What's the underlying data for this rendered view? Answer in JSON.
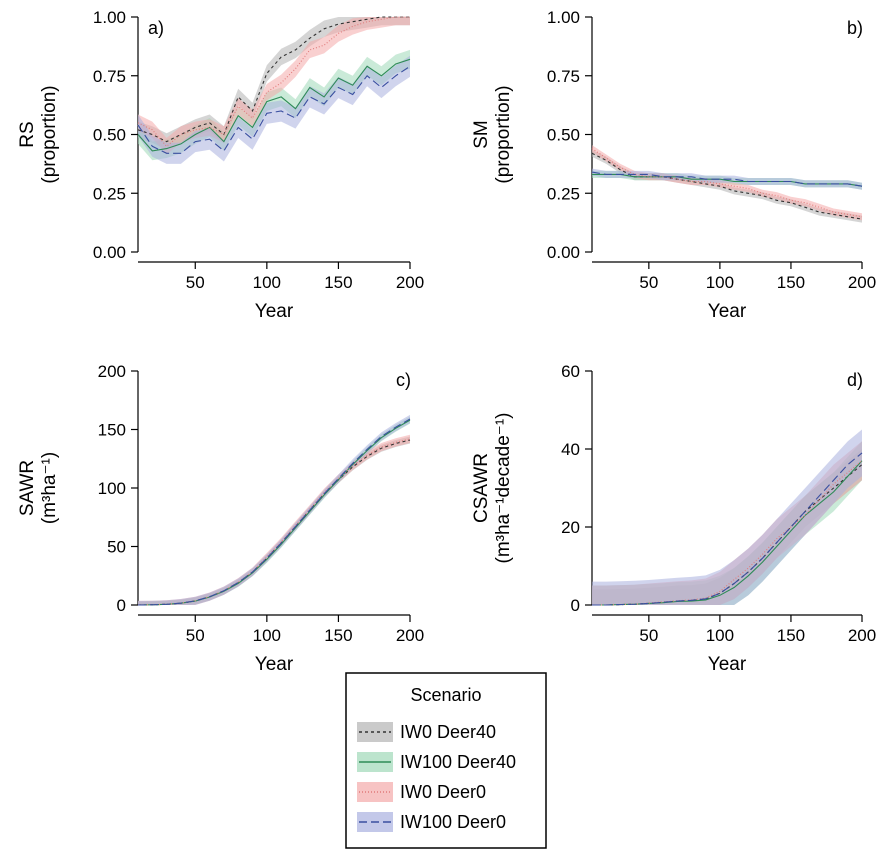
{
  "legend": {
    "title": "Scenario",
    "entries": [
      {
        "label": "IW0 Deer40",
        "line": "#333333",
        "fill": "#b3b3b3",
        "dash": "3,3"
      },
      {
        "label": "IW100 Deer40",
        "line": "#2e8b57",
        "fill": "#9fd8b8",
        "dash": ""
      },
      {
        "label": "IW0 Deer0",
        "line": "#e07b7b",
        "fill": "#f4a9a9",
        "dash": "1,2"
      },
      {
        "label": "IW100 Deer0",
        "line": "#3a4fa0",
        "fill": "#aab1df",
        "dash": "8,4"
      }
    ]
  },
  "chart_data": [
    {
      "tag": "a)",
      "type": "line",
      "xlabel": "Year",
      "ylabel": [
        "RS",
        "(proportion)"
      ],
      "xlim": [
        10,
        200
      ],
      "ylim": [
        0,
        1
      ],
      "xticks": [
        50,
        100,
        150,
        200
      ],
      "yticks": [
        0,
        0.25,
        0.5,
        0.75,
        1
      ],
      "ytick_labels": [
        "0.00",
        "0.25",
        "0.50",
        "0.75",
        "1.00"
      ],
      "x": [
        10,
        20,
        30,
        40,
        50,
        60,
        70,
        80,
        90,
        100,
        110,
        120,
        130,
        140,
        150,
        160,
        170,
        180,
        190,
        200
      ],
      "series": [
        {
          "name": "IW0 Deer40",
          "values": [
            0.52,
            0.5,
            0.47,
            0.5,
            0.53,
            0.55,
            0.5,
            0.66,
            0.6,
            0.76,
            0.83,
            0.86,
            0.91,
            0.95,
            0.97,
            0.98,
            0.99,
            1.0,
            1.0,
            1.0
          ],
          "band": 0.035
        },
        {
          "name": "IW100 Deer40",
          "values": [
            0.5,
            0.43,
            0.44,
            0.46,
            0.5,
            0.53,
            0.47,
            0.58,
            0.53,
            0.64,
            0.66,
            0.61,
            0.7,
            0.66,
            0.74,
            0.71,
            0.79,
            0.75,
            0.8,
            0.82
          ],
          "band": 0.04
        },
        {
          "name": "IW0 Deer0",
          "values": [
            0.55,
            0.52,
            0.45,
            0.5,
            0.52,
            0.53,
            0.5,
            0.62,
            0.57,
            0.68,
            0.72,
            0.78,
            0.86,
            0.88,
            0.93,
            0.96,
            0.98,
            0.99,
            1.0,
            1.0
          ],
          "band": 0.035
        },
        {
          "name": "IW100 Deer0",
          "values": [
            0.54,
            0.45,
            0.42,
            0.42,
            0.47,
            0.48,
            0.43,
            0.53,
            0.48,
            0.59,
            0.6,
            0.57,
            0.66,
            0.63,
            0.7,
            0.67,
            0.75,
            0.7,
            0.75,
            0.79
          ],
          "band": 0.045
        }
      ]
    },
    {
      "tag": "b)",
      "type": "line",
      "xlabel": "Year",
      "ylabel": [
        "SM",
        "(proportion)"
      ],
      "xlim": [
        10,
        200
      ],
      "ylim": [
        0,
        1
      ],
      "xticks": [
        50,
        100,
        150,
        200
      ],
      "yticks": [
        0,
        0.25,
        0.5,
        0.75,
        1
      ],
      "ytick_labels": [
        "0.00",
        "0.25",
        "0.50",
        "0.75",
        "1.00"
      ],
      "x": [
        10,
        20,
        30,
        40,
        50,
        60,
        70,
        80,
        90,
        100,
        110,
        120,
        130,
        140,
        150,
        160,
        170,
        180,
        190,
        200
      ],
      "series": [
        {
          "name": "IW0 Deer40",
          "values": [
            0.42,
            0.39,
            0.35,
            0.32,
            0.32,
            0.32,
            0.31,
            0.3,
            0.29,
            0.28,
            0.26,
            0.25,
            0.24,
            0.22,
            0.21,
            0.19,
            0.17,
            0.16,
            0.15,
            0.14
          ],
          "band": 0.015
        },
        {
          "name": "IW100 Deer40",
          "values": [
            0.33,
            0.33,
            0.33,
            0.32,
            0.32,
            0.32,
            0.32,
            0.31,
            0.31,
            0.31,
            0.3,
            0.3,
            0.3,
            0.3,
            0.3,
            0.29,
            0.29,
            0.29,
            0.29,
            0.28
          ],
          "band": 0.015
        },
        {
          "name": "IW0 Deer0",
          "values": [
            0.44,
            0.4,
            0.36,
            0.33,
            0.32,
            0.32,
            0.31,
            0.3,
            0.3,
            0.29,
            0.28,
            0.27,
            0.25,
            0.24,
            0.22,
            0.21,
            0.19,
            0.17,
            0.16,
            0.15
          ],
          "band": 0.015
        },
        {
          "name": "IW100 Deer0",
          "values": [
            0.34,
            0.33,
            0.33,
            0.33,
            0.33,
            0.32,
            0.32,
            0.32,
            0.31,
            0.31,
            0.31,
            0.3,
            0.3,
            0.3,
            0.3,
            0.29,
            0.29,
            0.29,
            0.29,
            0.28
          ],
          "band": 0.015
        }
      ]
    },
    {
      "tag": "c)",
      "type": "line",
      "xlabel": "Year",
      "ylabel": [
        "SAWR",
        "(m³ha⁻¹)"
      ],
      "xlim": [
        10,
        200
      ],
      "ylim": [
        0,
        200
      ],
      "xticks": [
        50,
        100,
        150,
        200
      ],
      "yticks": [
        0,
        50,
        100,
        150,
        200
      ],
      "ytick_labels": [
        "0",
        "50",
        "100",
        "150",
        "200"
      ],
      "x": [
        10,
        20,
        30,
        40,
        50,
        60,
        70,
        80,
        90,
        100,
        110,
        120,
        130,
        140,
        150,
        160,
        170,
        180,
        190,
        200
      ],
      "series": [
        {
          "name": "IW0 Deer40",
          "values": [
            0,
            0.2,
            0.6,
            1.5,
            3.5,
            7,
            12,
            19,
            28,
            40,
            53,
            67,
            81,
            95,
            107,
            118,
            127,
            134,
            138,
            141
          ],
          "band": 3
        },
        {
          "name": "IW100 Deer40",
          "values": [
            0,
            0.2,
            0.6,
            1.5,
            3.3,
            6.8,
            11.8,
            18.5,
            27.5,
            39,
            52,
            66,
            80,
            94,
            107,
            120,
            132,
            143,
            151,
            158
          ],
          "band": 3
        },
        {
          "name": "IW0 Deer0",
          "values": [
            0,
            0.2,
            0.6,
            1.6,
            3.6,
            7.2,
            12.3,
            19.5,
            28.5,
            41,
            54,
            68,
            82,
            96,
            108,
            119,
            128,
            135,
            139,
            142
          ],
          "band": 3.5
        },
        {
          "name": "IW100 Deer0",
          "values": [
            0,
            0.2,
            0.6,
            1.6,
            3.5,
            7.1,
            12.2,
            19.2,
            28.2,
            40,
            53,
            67,
            81,
            95,
            108,
            121,
            133,
            144,
            152,
            159
          ],
          "band": 3.5
        }
      ]
    },
    {
      "tag": "d)",
      "type": "line",
      "xlabel": "Year",
      "ylabel": [
        "CSAWR",
        "(m³ha⁻¹decade⁻¹)"
      ],
      "xlim": [
        10,
        200
      ],
      "ylim": [
        0,
        60
      ],
      "xticks": [
        50,
        100,
        150,
        200
      ],
      "yticks": [
        0,
        20,
        40,
        60
      ],
      "ytick_labels": [
        "0",
        "20",
        "40",
        "60"
      ],
      "x": [
        10,
        20,
        30,
        40,
        50,
        60,
        70,
        80,
        90,
        100,
        110,
        120,
        130,
        140,
        150,
        160,
        170,
        180,
        190,
        200
      ],
      "series": [
        {
          "name": "IW0 Deer40",
          "values": [
            0,
            0,
            0.1,
            0.2,
            0.4,
            0.7,
            1.0,
            1.1,
            1.5,
            3,
            5.5,
            8.5,
            12,
            16,
            20,
            24,
            27,
            30,
            33,
            36
          ],
          "band": 4
        },
        {
          "name": "IW100 Deer40",
          "values": [
            0,
            0,
            0.1,
            0.2,
            0.4,
            0.6,
            0.9,
            1.0,
            1.3,
            2.5,
            4.5,
            7.5,
            11,
            15,
            19,
            23,
            26,
            29,
            33,
            37
          ],
          "band": 5
        },
        {
          "name": "IW0 Deer0",
          "values": [
            0,
            0,
            0.1,
            0.2,
            0.5,
            0.8,
            1.1,
            1.3,
            1.8,
            3.5,
            6.5,
            9.5,
            13,
            17,
            20,
            23,
            27,
            31,
            34,
            37
          ],
          "band": 5
        },
        {
          "name": "IW100 Deer0",
          "values": [
            0,
            0,
            0.1,
            0.2,
            0.4,
            0.7,
            1.0,
            1.2,
            1.6,
            3,
            5.5,
            8.5,
            12,
            16,
            20,
            24,
            28,
            32,
            36,
            39
          ],
          "band": 6
        }
      ]
    }
  ]
}
